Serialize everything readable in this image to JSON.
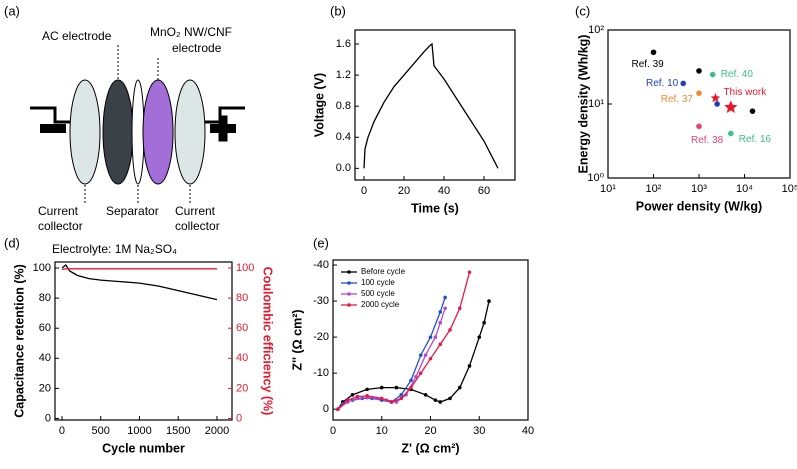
{
  "diagram": {
    "label": "(a)",
    "ac_electrode": "AC electrode",
    "mno2_electrode": [
      "MnO₂ NW/CNF",
      "electrode"
    ],
    "collector_left": [
      "Current",
      "collector"
    ],
    "separator": "Separator",
    "collector_right": [
      "Current",
      "collector"
    ],
    "electrolyte": "Electrolyte: 1M Na₂SO₄"
  },
  "chart_data": [
    {
      "type": "line",
      "label": "(b)",
      "xlabel": "Time (s)",
      "ylabel": "Voltage (V)",
      "xlim": [
        -4.5,
        75.5
      ],
      "xticks": [
        0,
        20,
        40,
        60
      ],
      "ylim": [
        -0.15,
        1.78
      ],
      "yticks": [
        {
          "value": 0,
          "label": "0.0"
        },
        0.4,
        0.8,
        1.2,
        1.6
      ],
      "series": [
        {
          "color": "#000000",
          "x": [
            0,
            0.5,
            2,
            5,
            10,
            15,
            20,
            25,
            30,
            33,
            34,
            35,
            40,
            50,
            60,
            67
          ],
          "values": [
            0,
            0.25,
            0.4,
            0.6,
            0.85,
            1.05,
            1.2,
            1.35,
            1.5,
            1.58,
            1.6,
            1.32,
            1.15,
            0.75,
            0.35,
            0
          ]
        }
      ]
    },
    {
      "type": "scatter",
      "label": "(c)",
      "xlabel": "Power density (W/kg)",
      "ylabel": "Energy density (Wh/kg)",
      "log_x": true,
      "log_y": true,
      "xlim": [
        10,
        100000
      ],
      "xticks": [
        {
          "value": 10,
          "label": "10¹"
        },
        {
          "value": 100,
          "label": "10²"
        },
        {
          "value": 1000,
          "label": "10³"
        },
        {
          "value": 10000,
          "label": "10⁴"
        },
        {
          "value": 100000,
          "label": "10⁵"
        }
      ],
      "ylim": [
        1,
        100
      ],
      "yticks": [
        {
          "value": 1,
          "label": "10⁰"
        },
        {
          "value": 10,
          "label": "10¹"
        },
        {
          "value": 100,
          "label": "10²"
        }
      ],
      "points": [
        {
          "x": 100,
          "y": 50,
          "color": "#000000",
          "label": "Ref. 39"
        },
        {
          "x": 1000,
          "y": 28,
          "color": "#000000"
        },
        {
          "x": 450,
          "y": 19,
          "color": "#1f3fbf",
          "label": "Ref. 10"
        },
        {
          "x": 1000,
          "y": 14,
          "color": "#f08a30",
          "label": "Ref. 37"
        },
        {
          "x": 2000,
          "y": 25,
          "color": "#3cc08a",
          "label": "Ref. 40"
        },
        {
          "x": 2500,
          "y": 10,
          "color": "#1f3fbf"
        },
        {
          "x": 2300,
          "y": 12,
          "color": "#e8192c",
          "marker": "star",
          "label": "This work"
        },
        {
          "x": 5000,
          "y": 9,
          "color": "#e8192c",
          "marker": "star"
        },
        {
          "x": 1000,
          "y": 5,
          "color": "#e8407a",
          "label": "Ref. 38"
        },
        {
          "x": 5000,
          "y": 4,
          "color": "#3cc08a",
          "label": "Ref. 16"
        },
        {
          "x": 15000,
          "y": 8,
          "color": "#000000"
        }
      ]
    },
    {
      "type": "line",
      "label": "(d)",
      "xlabel": "Cycle number",
      "ylabel": "Capacitance retention (%)",
      "y2label": "Coulombic efficiency (%)",
      "y2color": "#e8192c",
      "xlim": [
        -90,
        2194
      ],
      "xticks": [
        0,
        500,
        1000,
        1500,
        2000
      ],
      "ylim": [
        -1,
        104
      ],
      "yticks": [
        0,
        20,
        40,
        60,
        80,
        100
      ],
      "y2lim": [
        -1,
        104
      ],
      "y2ticks": [
        0,
        20,
        40,
        60,
        80,
        100
      ],
      "series": [
        {
          "color": "#000000",
          "x": [
            0,
            25,
            50,
            100,
            200,
            350,
            500,
            750,
            1000,
            1250,
            1500,
            1750,
            2000
          ],
          "values": [
            100,
            101,
            102,
            98,
            95,
            93,
            92,
            91,
            90,
            88,
            85,
            82,
            79
          ]
        },
        {
          "color": "#e8192c",
          "axis": "y2",
          "x": [
            0,
            50,
            500,
            1000,
            1500,
            2000
          ],
          "values": [
            99,
            99.5,
            99.5,
            99.5,
            99.5,
            99.5
          ]
        }
      ]
    },
    {
      "type": "line",
      "label": "(e)",
      "xlabel": "Z' (Ω cm²)",
      "ylabel": "Z'' (Ω cm²)",
      "markers": true,
      "legend": "upper left",
      "xlim": [
        0,
        40
      ],
      "xticks": [
        0,
        10,
        20,
        30,
        40
      ],
      "ylim": [
        3,
        -41.4
      ],
      "yticks": [
        0,
        -10,
        -20,
        -30,
        -40
      ],
      "series": [
        {
          "name": "Before cycle",
          "color": "#000000",
          "x": [
            1,
            2,
            4,
            7,
            10,
            13,
            16,
            19,
            21,
            22,
            24,
            26,
            28,
            30,
            31,
            32
          ],
          "values": [
            0,
            -2,
            -4,
            -5.5,
            -6,
            -6,
            -5.5,
            -4,
            -2.5,
            -2,
            -3,
            -6,
            -12,
            -20,
            -24,
            -30
          ]
        },
        {
          "name": "100 cycle",
          "color": "#2050d0",
          "x": [
            1,
            2,
            4,
            6,
            8,
            10,
            12,
            14,
            16,
            18,
            20,
            22,
            23
          ],
          "values": [
            0,
            -1.5,
            -2.5,
            -3,
            -3,
            -2.5,
            -2,
            -4,
            -8,
            -15,
            -20,
            -27,
            -31
          ]
        },
        {
          "name": "500 cycle",
          "color": "#b04ad8",
          "x": [
            1,
            3,
            5,
            7,
            9,
            11,
            13,
            15,
            17,
            19,
            21,
            22,
            23
          ],
          "values": [
            0,
            -2,
            -3,
            -3.2,
            -3,
            -2.5,
            -2,
            -4,
            -9,
            -15,
            -20,
            -24,
            -28
          ]
        },
        {
          "name": "2000 cycle",
          "color": "#e8194a",
          "x": [
            1,
            3,
            5,
            7,
            10,
            12,
            14,
            16,
            18,
            20,
            22,
            24,
            26,
            28
          ],
          "values": [
            0,
            -2.5,
            -3.5,
            -3.7,
            -3,
            -2,
            -3,
            -6,
            -10,
            -14,
            -18,
            -22,
            -28,
            -38
          ]
        }
      ]
    }
  ]
}
